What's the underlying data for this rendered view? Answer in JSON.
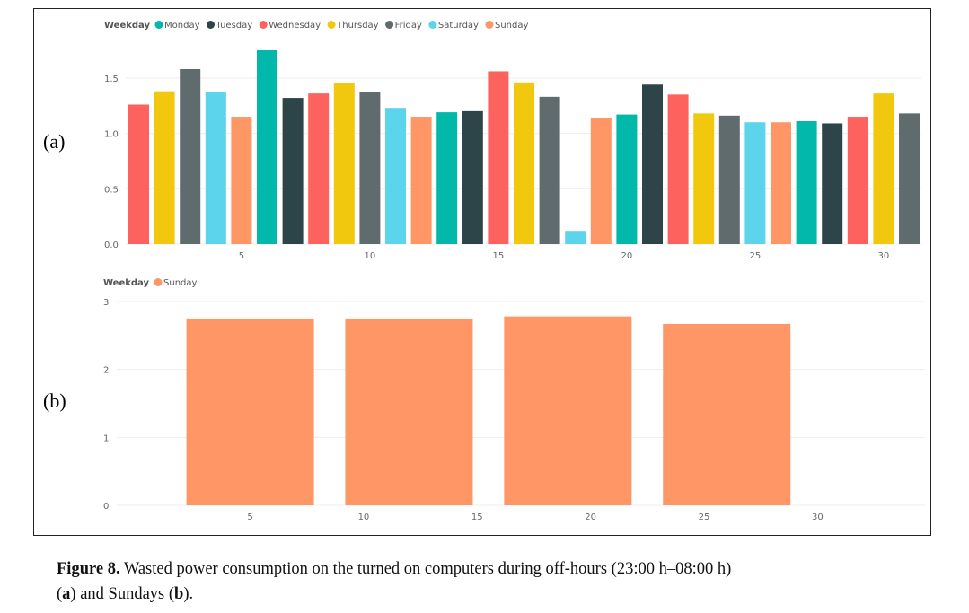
{
  "panel_labels": {
    "a": "(a)",
    "b": "(b)"
  },
  "caption": {
    "figure_label": "Figure 8.",
    "text_line1": " Wasted power consumption on the turned on computers during off-hours (23:00 h–08:00 h)",
    "paren_open_a": "(",
    "a": "a",
    "middle": ") and Sundays (",
    "b": "b",
    "end": ")."
  },
  "colors": {
    "Monday": "#01B8AA",
    "Tuesday": "#2D4448",
    "Wednesday": "#FD625E",
    "Thursday": "#F2C80F",
    "Friday": "#5F6B6D",
    "Saturday": "#5CD4EB",
    "Sunday": "#FE9666",
    "gridline": "#eeeeee",
    "tick": "#666666"
  },
  "chart_data": [
    {
      "type": "bar",
      "legend_title": "Weekday",
      "legend": [
        "Monday",
        "Tuesday",
        "Wednesday",
        "Thursday",
        "Friday",
        "Saturday",
        "Sunday"
      ],
      "legend_position": "top-left",
      "grid": true,
      "x": [
        1,
        2,
        3,
        4,
        5,
        6,
        7,
        8,
        9,
        10,
        11,
        12,
        13,
        14,
        15,
        16,
        17,
        18,
        19,
        20,
        21,
        22,
        23,
        24,
        25,
        26,
        27,
        28,
        29,
        30,
        31
      ],
      "weekday": [
        "Wednesday",
        "Thursday",
        "Friday",
        "Saturday",
        "Sunday",
        "Monday",
        "Tuesday",
        "Wednesday",
        "Thursday",
        "Friday",
        "Saturday",
        "Sunday",
        "Monday",
        "Tuesday",
        "Wednesday",
        "Thursday",
        "Friday",
        "Saturday",
        "Sunday",
        "Monday",
        "Tuesday",
        "Wednesday",
        "Thursday",
        "Friday",
        "Saturday",
        "Sunday",
        "Monday",
        "Tuesday",
        "Wednesday",
        "Thursday",
        "Friday"
      ],
      "values": [
        1.26,
        1.38,
        1.58,
        1.37,
        1.15,
        1.75,
        1.32,
        1.36,
        1.45,
        1.37,
        1.23,
        1.15,
        1.19,
        1.2,
        1.56,
        1.46,
        1.33,
        0.12,
        1.14,
        1.17,
        1.44,
        1.35,
        1.18,
        1.16,
        1.1,
        1.1,
        1.11,
        1.09,
        1.15,
        1.36,
        1.18
      ],
      "xticks": [
        5,
        10,
        15,
        20,
        25,
        30
      ],
      "yticks": [
        0.0,
        0.5,
        1.0,
        1.5
      ],
      "ytick_labels": [
        "0.0",
        "0.5",
        "1.0",
        "1.5"
      ],
      "ylim": [
        0,
        1.75
      ]
    },
    {
      "type": "bar",
      "legend_title": "Weekday",
      "legend": [
        "Sunday"
      ],
      "legend_position": "top-left",
      "grid": true,
      "x": [
        5,
        12,
        19,
        26
      ],
      "values": [
        2.75,
        2.75,
        2.78,
        2.67
      ],
      "xticks": [
        5,
        10,
        15,
        20,
        25,
        30
      ],
      "yticks": [
        0,
        1,
        2,
        3
      ],
      "ytick_labels": [
        "0",
        "1",
        "2",
        "3"
      ],
      "ylim": [
        0,
        3
      ]
    }
  ]
}
